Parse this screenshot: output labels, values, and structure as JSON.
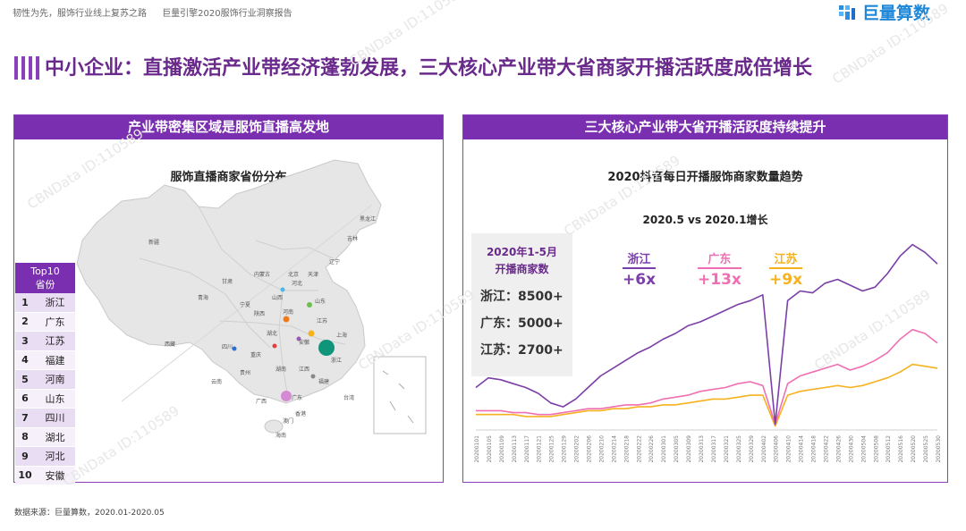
{
  "header": {
    "left": [
      "韧性为先，服饰行业线上复苏之路",
      "巨量引擎2020服饰行业洞察报告"
    ],
    "logo_text": "巨量算数"
  },
  "title": "中小企业：直播激活产业带经济蓬勃发展，三大核心产业带大省商家开播活跃度成倍增长",
  "left_panel": {
    "header": "产业带密集区域是服饰直播高发地",
    "subtitle": "服饰直播商家省份分布",
    "top10_header": [
      "Top10",
      "省份"
    ],
    "top10": [
      {
        "rank": "1",
        "name": "浙江"
      },
      {
        "rank": "2",
        "name": "广东"
      },
      {
        "rank": "3",
        "name": "江苏"
      },
      {
        "rank": "4",
        "name": "福建"
      },
      {
        "rank": "5",
        "name": "河南"
      },
      {
        "rank": "6",
        "name": "山东"
      },
      {
        "rank": "7",
        "name": "四川"
      },
      {
        "rank": "8",
        "name": "湖北"
      },
      {
        "rank": "9",
        "name": "河北"
      },
      {
        "rank": "10",
        "name": "安徽"
      }
    ],
    "map_labels": [
      "新疆",
      "西藏",
      "青海",
      "甘肃",
      "内蒙古",
      "宁夏",
      "陕西",
      "四川",
      "重庆",
      "云南",
      "贵州",
      "广西",
      "广东",
      "海南",
      "湖南",
      "湖北",
      "河南",
      "山西",
      "河北",
      "北京",
      "天津",
      "山东",
      "江苏",
      "上海",
      "浙江",
      "安徽",
      "江西",
      "福建",
      "台湾",
      "辽宁",
      "吉林",
      "黑龙江",
      "香港",
      "澳门"
    ]
  },
  "right_panel": {
    "header": "三大核心产业带大省开播活跃度持续提升",
    "subtitle": "2020抖音每日开播服饰商家数量趋势",
    "growth_title": "2020.5 vs 2020.1增长",
    "box_header": [
      "2020年1-5月",
      "开播商家数"
    ],
    "box_values": [
      "浙江：8500+",
      "广东：5000+",
      "江苏：2700+"
    ],
    "growth": [
      {
        "name": "浙江",
        "value": "+6x",
        "color": "#7b3fa8"
      },
      {
        "name": "广东",
        "value": "+13x",
        "color": "#f06fb3"
      },
      {
        "name": "江苏",
        "value": "+9x",
        "color": "#f6b21e"
      }
    ]
  },
  "colors": {
    "purple": "#7a2fb0",
    "zhejiang": "#7b3fa8",
    "guangdong": "#f06fb3",
    "jiangsu": "#f6b21e"
  },
  "chart_data": {
    "type": "line",
    "title": "2020抖音每日开播服饰商家数量趋势",
    "x_tick_labels": [
      "20200101",
      "20200105",
      "20200109",
      "20200113",
      "20200117",
      "20200121",
      "20200125",
      "20200129",
      "20200202",
      "20200206",
      "20200210",
      "20200214",
      "20200218",
      "20200222",
      "20200226",
      "20200301",
      "20200305",
      "20200309",
      "20200313",
      "20200317",
      "20200321",
      "20200325",
      "20200329",
      "20200402",
      "20200406",
      "20200410",
      "20200414",
      "20200418",
      "20200422",
      "20200426",
      "20200430",
      "20200504",
      "20200508",
      "20200512",
      "20200516",
      "20200520",
      "20200525",
      "20200530"
    ],
    "ylim": [
      0,
      100
    ],
    "series": [
      {
        "name": "浙江",
        "color": "#7b3fa8",
        "values": [
          22,
          27,
          26,
          24,
          22,
          19,
          14,
          12,
          16,
          22,
          28,
          32,
          36,
          40,
          43,
          47,
          50,
          54,
          56,
          59,
          62,
          65,
          67,
          70,
          3,
          67,
          72,
          71,
          76,
          78,
          75,
          72,
          74,
          81,
          90,
          96,
          92,
          86
        ]
      },
      {
        "name": "广东",
        "color": "#f06fb3",
        "values": [
          10,
          10,
          10,
          9,
          9,
          8,
          8,
          9,
          10,
          11,
          11,
          12,
          13,
          13,
          14,
          16,
          17,
          18,
          20,
          21,
          22,
          24,
          25,
          23,
          3,
          24,
          28,
          30,
          32,
          34,
          31,
          33,
          36,
          40,
          47,
          52,
          50,
          45
        ]
      },
      {
        "name": "江苏",
        "color": "#f6b21e",
        "values": [
          8,
          8,
          8,
          8,
          7,
          7,
          7,
          8,
          9,
          10,
          10,
          11,
          11,
          12,
          12,
          13,
          13,
          14,
          15,
          16,
          16,
          17,
          18,
          18,
          2,
          18,
          20,
          21,
          22,
          23,
          22,
          23,
          25,
          27,
          30,
          34,
          33,
          32
        ]
      }
    ]
  }
}
